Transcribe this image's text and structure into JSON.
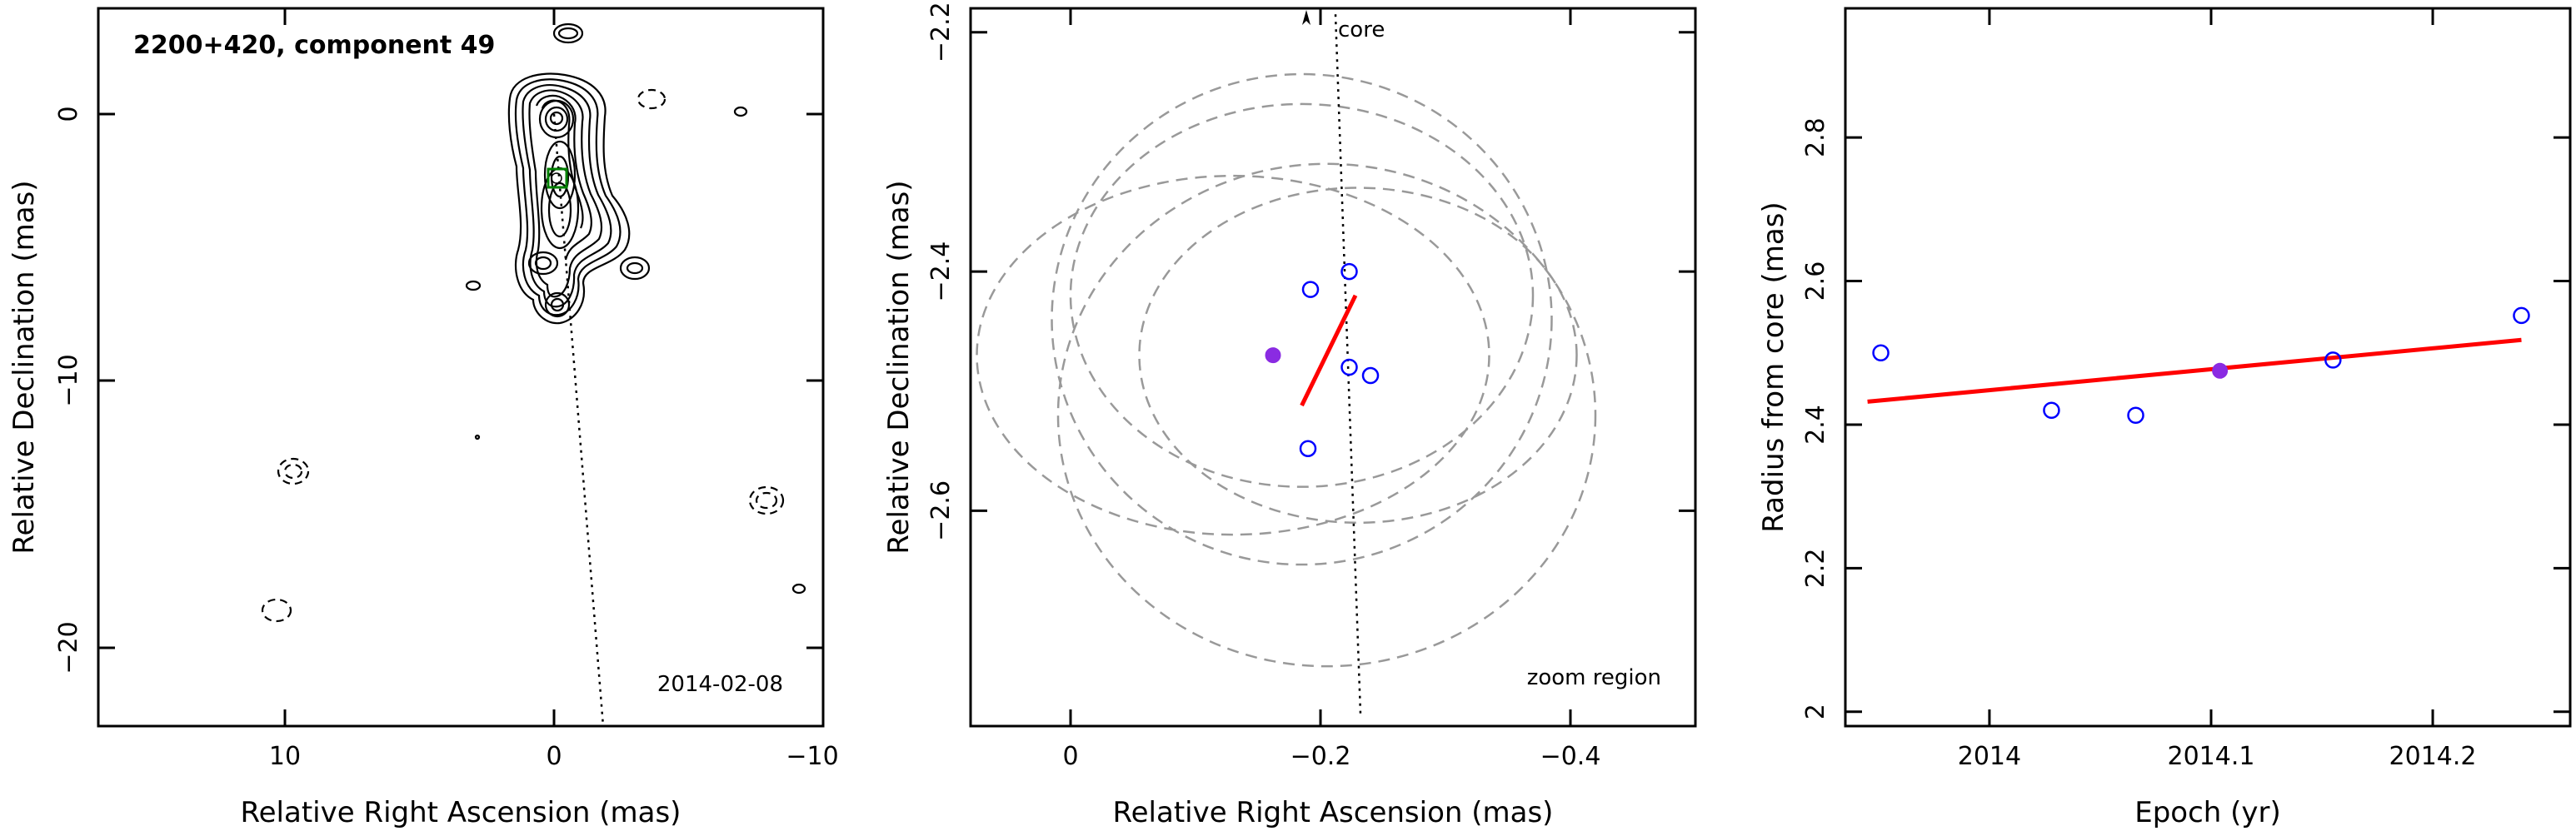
{
  "chart_data": [
    {
      "type": "contour",
      "title": "2200+420, component 49",
      "date": "2014-02-08",
      "xlabel": "Relative Right Ascension (mas)",
      "ylabel": "Relative Declination (mas)",
      "xlim": [
        17,
        -10
      ],
      "ylim": [
        -23,
        3.5
      ],
      "xticks": [
        10,
        0,
        -10
      ],
      "yticks": [
        0,
        -10,
        -20
      ],
      "xtick_labels": [
        "10",
        "0",
        "−10"
      ],
      "ytick_labels": [
        "0",
        "−10",
        "−20"
      ],
      "component_marker": {
        "x": -0.2,
        "y": -2.45
      },
      "pa_line": [
        [
          0,
          0
        ],
        [
          -1.8,
          -23
        ]
      ],
      "colors": {
        "contour": "#000000",
        "component_box": "#008000"
      }
    },
    {
      "type": "scatter",
      "label": "zoom region",
      "core_label": "core",
      "xlabel": "Relative Right Ascension (mas)",
      "ylabel": "Relative Declination (mas)",
      "xlim": [
        0.08,
        -0.5
      ],
      "ylim": [
        -2.78,
        -2.18
      ],
      "xticks": [
        0,
        -0.2,
        -0.4
      ],
      "yticks": [
        -2.2,
        -2.4,
        -2.6
      ],
      "xtick_labels": [
        "0",
        "−0.2",
        "−0.4"
      ],
      "ytick_labels": [
        "−2.2",
        "−2.4",
        "−2.6"
      ],
      "points": [
        {
          "x": -0.223,
          "y": -2.4
        },
        {
          "x": -0.192,
          "y": -2.415
        },
        {
          "x": -0.223,
          "y": -2.48
        },
        {
          "x": -0.24,
          "y": -2.487
        },
        {
          "x": -0.19,
          "y": -2.548
        }
      ],
      "mean_point": {
        "x": -0.162,
        "y": -2.47
      },
      "fit_line": [
        [
          -0.185,
          -2.512
        ],
        [
          -0.228,
          -2.42
        ]
      ],
      "pa_line": [
        [
          -0.212,
          -2.185
        ],
        [
          -0.232,
          -2.77
        ]
      ],
      "beam_circles": [
        {
          "cx": -0.13,
          "cy": -2.47,
          "rx": 0.205,
          "ry": 0.15
        },
        {
          "cx": -0.185,
          "cy": -2.44,
          "rx": 0.2,
          "ry": 0.205
        },
        {
          "cx": -0.185,
          "cy": -2.42,
          "rx": 0.185,
          "ry": 0.16
        },
        {
          "cx": -0.205,
          "cy": -2.52,
          "rx": 0.215,
          "ry": 0.21
        },
        {
          "cx": -0.23,
          "cy": -2.47,
          "rx": 0.175,
          "ry": 0.14
        }
      ],
      "colors": {
        "points": "#0000ff",
        "mean": "#8a2be2",
        "fit": "#ff0000",
        "beams": "#999999"
      }
    },
    {
      "type": "scatter",
      "xlabel": "Epoch (yr)",
      "ylabel": "Radius from core (mas)",
      "xlim": [
        2013.935,
        2014.262
      ],
      "ylim": [
        1.98,
        2.98
      ],
      "xticks": [
        2014,
        2014.1,
        2014.2
      ],
      "yticks": [
        2,
        2.2,
        2.4,
        2.6,
        2.8
      ],
      "xtick_labels": [
        "2014",
        "2014.1",
        "2014.2"
      ],
      "ytick_labels": [
        "2",
        "2.2",
        "2.4",
        "2.6",
        "2.8"
      ],
      "points": [
        {
          "x": 2013.951,
          "y": 2.5
        },
        {
          "x": 2014.028,
          "y": 2.42
        },
        {
          "x": 2014.066,
          "y": 2.413
        },
        {
          "x": 2014.155,
          "y": 2.49
        },
        {
          "x": 2014.24,
          "y": 2.552
        }
      ],
      "mean_point": {
        "x": 2014.104,
        "y": 2.475
      },
      "fit_line": [
        [
          2013.945,
          2.432
        ],
        [
          2014.24,
          2.518
        ]
      ],
      "colors": {
        "points": "#0000ff",
        "mean": "#8a2be2",
        "fit": "#ff0000"
      }
    }
  ]
}
